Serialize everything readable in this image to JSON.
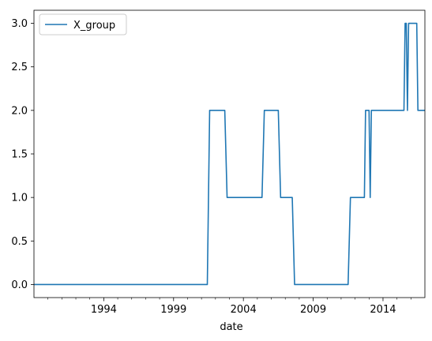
{
  "chart_data": {
    "type": "line",
    "xlabel": "date",
    "ylabel": "",
    "x_range": [
      "1989-01",
      "2017-01"
    ],
    "ylim": [
      -0.15,
      3.15
    ],
    "x_ticks": [
      {
        "date": "1994-01",
        "label": "1994"
      },
      {
        "date": "1999-01",
        "label": "1999"
      },
      {
        "date": "2004-01",
        "label": "2004"
      },
      {
        "date": "2009-01",
        "label": "2009"
      },
      {
        "date": "2014-01",
        "label": "2014"
      }
    ],
    "y_ticks": [
      "0.0",
      "0.5",
      "1.0",
      "1.5",
      "2.0",
      "2.5",
      "3.0"
    ],
    "grid": false,
    "legend_position": "top-left",
    "series": [
      {
        "name": "X_group",
        "color": "#1f77b4",
        "points": [
          [
            "1989-01",
            0
          ],
          [
            "2001-06",
            0
          ],
          [
            "2001-08",
            2
          ],
          [
            "2002-09",
            2
          ],
          [
            "2002-11",
            1
          ],
          [
            "2005-05",
            1
          ],
          [
            "2005-07",
            2
          ],
          [
            "2006-07",
            2
          ],
          [
            "2006-09",
            1
          ],
          [
            "2007-07",
            1
          ],
          [
            "2007-09",
            0
          ],
          [
            "2011-07",
            0
          ],
          [
            "2011-09",
            1
          ],
          [
            "2012-09",
            1
          ],
          [
            "2012-10",
            2
          ],
          [
            "2013-01",
            2
          ],
          [
            "2013-02",
            1
          ],
          [
            "2013-03",
            2
          ],
          [
            "2015-07",
            2
          ],
          [
            "2015-08",
            3
          ],
          [
            "2015-09",
            3
          ],
          [
            "2015-10",
            2
          ],
          [
            "2015-11",
            3
          ],
          [
            "2016-06",
            3
          ],
          [
            "2016-07",
            2
          ],
          [
            "2017-01",
            2
          ]
        ]
      }
    ]
  }
}
